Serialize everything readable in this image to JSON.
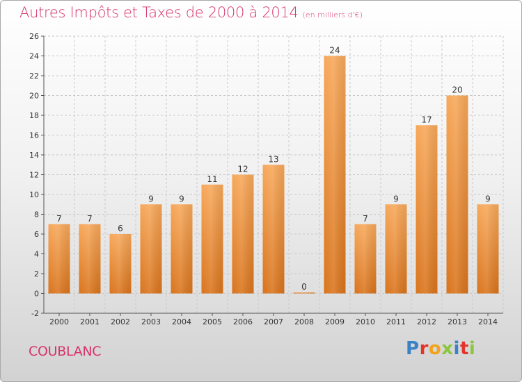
{
  "header": {
    "title": "Autres Impôts et Taxes de 2000 à 2014",
    "unit": "(en milliers d'€)"
  },
  "footer": {
    "location": "COUBLANC",
    "brand_letters": [
      "P",
      "r",
      "o",
      "x",
      "i",
      "t",
      "i"
    ]
  },
  "colors": {
    "title": "#d6336c",
    "bar_top": "#f7a85a",
    "bar_bottom": "#d9741c",
    "grid": "#c8c8c8"
  },
  "chart_data": {
    "type": "bar",
    "categories": [
      "2000",
      "2001",
      "2002",
      "2003",
      "2004",
      "2005",
      "2006",
      "2007",
      "2008",
      "2009",
      "2010",
      "2011",
      "2012",
      "2013",
      "2014"
    ],
    "values": [
      7,
      7,
      6,
      9,
      9,
      11,
      12,
      13,
      0,
      24,
      7,
      9,
      17,
      20,
      9
    ],
    "title": "Autres Impôts et Taxes de 2000 à 2014",
    "subtitle": "(en milliers d'€)",
    "ylim": [
      -2,
      26
    ],
    "yticks": [
      -2,
      0,
      2,
      4,
      6,
      8,
      10,
      12,
      14,
      16,
      18,
      20,
      22,
      24,
      26
    ],
    "grid": "horizontal dashed",
    "legend": "none"
  }
}
